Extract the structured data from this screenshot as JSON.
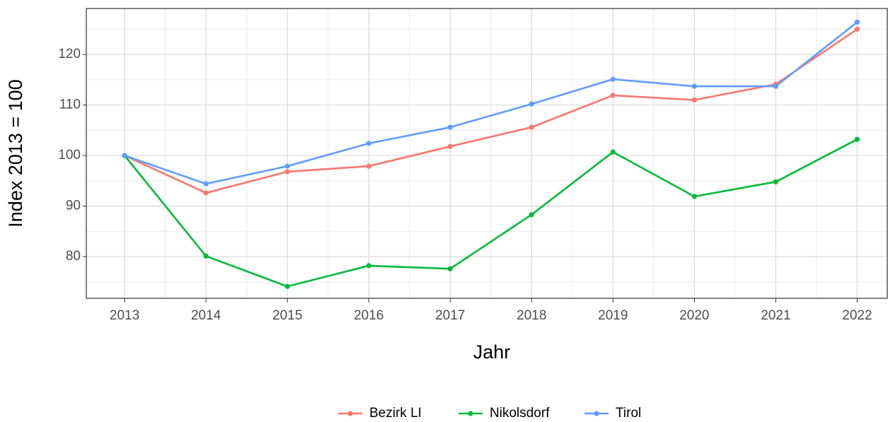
{
  "chart_data": {
    "type": "line",
    "x_label": "Jahr",
    "y_label": "Index  2013  = 100",
    "x": [
      2013,
      2014,
      2015,
      2016,
      2017,
      2018,
      2019,
      2020,
      2021,
      2022
    ],
    "series": [
      {
        "name": "Bezirk LI",
        "color": "#f8766d",
        "values": [
          100,
          92.6,
          96.8,
          97.9,
          101.8,
          105.6,
          111.9,
          111.0,
          114.1,
          125.0
        ]
      },
      {
        "name": "Nikolsdorf",
        "color": "#00ba38",
        "values": [
          100,
          80.1,
          74.1,
          78.2,
          77.6,
          88.3,
          100.7,
          91.9,
          94.8,
          103.2
        ]
      },
      {
        "name": "Tirol",
        "color": "#619cff",
        "values": [
          100,
          94.4,
          97.9,
          102.4,
          105.6,
          110.2,
          115.1,
          113.7,
          113.7,
          126.4
        ]
      }
    ],
    "xlim": [
      2012.53,
      2022.37
    ],
    "xticks": [
      2013,
      2014,
      2015,
      2016,
      2017,
      2018,
      2019,
      2020,
      2021,
      2022
    ],
    "ylim": [
      71.75,
      129.1
    ],
    "yticks": [
      80,
      90,
      100,
      110,
      120
    ],
    "grid": true,
    "legend": "bottom"
  }
}
